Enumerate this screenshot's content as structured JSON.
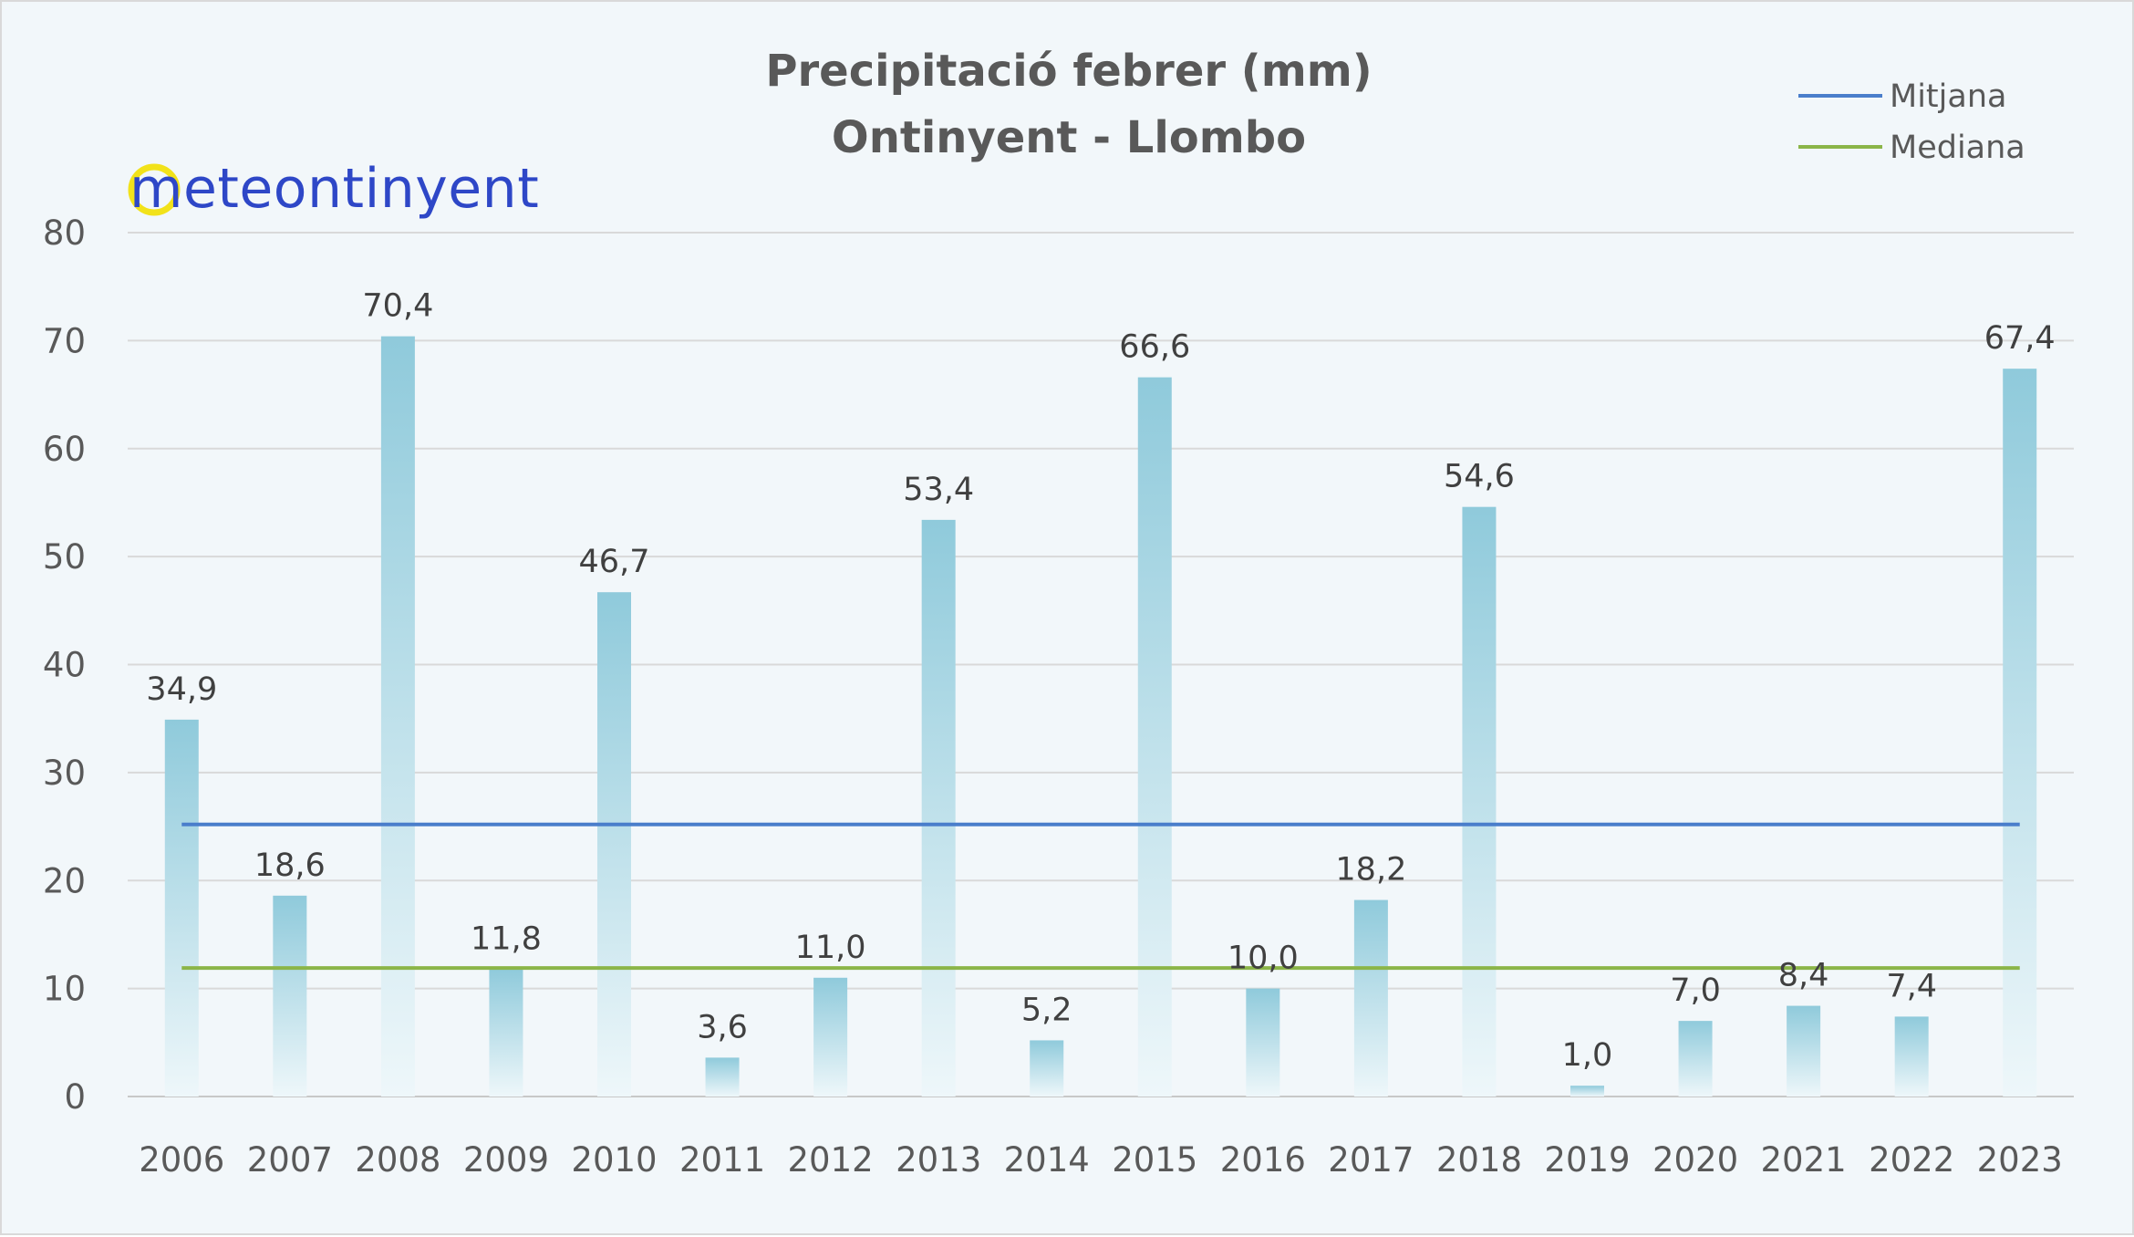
{
  "logo": {
    "text": "meteontinyent",
    "text_color": "#2e47c7",
    "ring_color": "#f2e21a"
  },
  "chart_data": {
    "type": "bar",
    "title": "Precipitació febrer (mm)",
    "subtitle": "Ontinyent - Llombo",
    "categories": [
      "2006",
      "2007",
      "2008",
      "2009",
      "2010",
      "2011",
      "2012",
      "2013",
      "2014",
      "2015",
      "2016",
      "2017",
      "2018",
      "2019",
      "2020",
      "2021",
      "2022",
      "2023"
    ],
    "values": [
      34.9,
      18.6,
      70.4,
      11.8,
      46.7,
      3.6,
      11.0,
      53.4,
      5.2,
      66.6,
      10.0,
      18.2,
      54.6,
      1.0,
      7.0,
      8.4,
      7.4,
      67.4
    ],
    "data_labels": [
      "34,9",
      "18,6",
      "70,4",
      "11,8",
      "46,7",
      "3,6",
      "11,0",
      "53,4",
      "5,2",
      "66,6",
      "10,0",
      "18,2",
      "54,6",
      "1,0",
      "7,0",
      "8,4",
      "7,4",
      "67,4"
    ],
    "ylim": [
      0,
      80
    ],
    "yticks": [
      0,
      10,
      20,
      30,
      40,
      50,
      60,
      70,
      80
    ],
    "grid": true,
    "bar_color_top": "#8fcadb",
    "bar_color_bottom": "#eef7fa",
    "reference_lines": [
      {
        "name": "Mitjana",
        "value": 25.2,
        "color": "#4a7ecb"
      },
      {
        "name": "Mediana",
        "value": 11.9,
        "color": "#8bb548"
      }
    ],
    "legend_position": "top-right"
  }
}
